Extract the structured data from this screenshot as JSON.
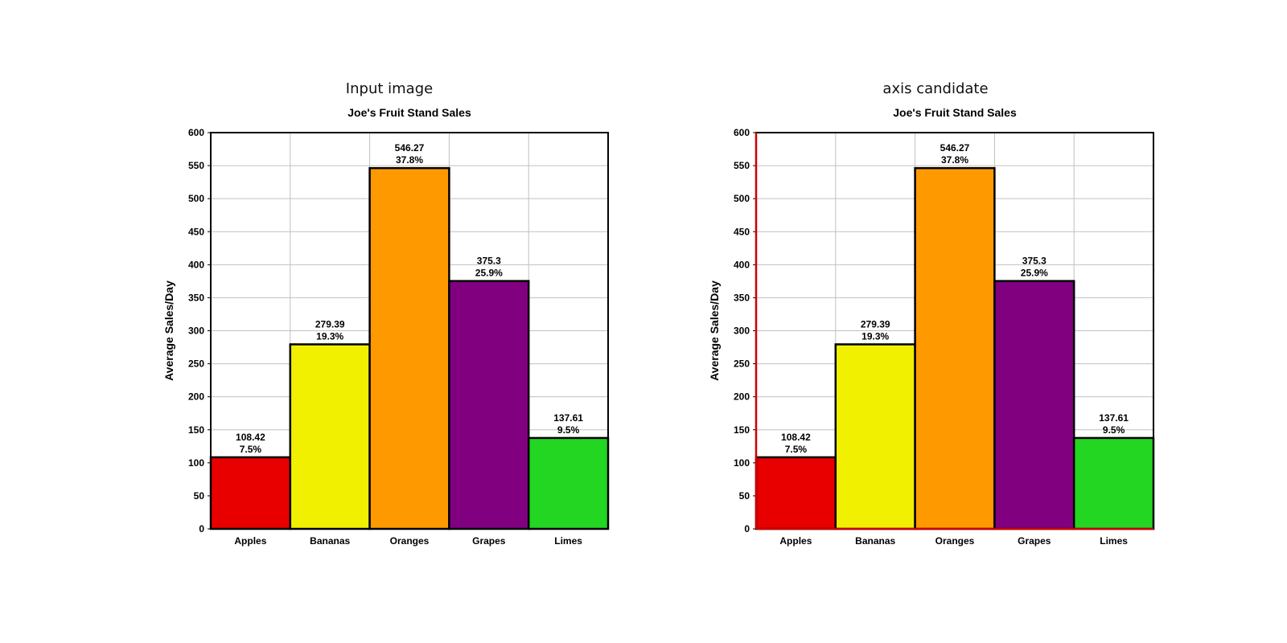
{
  "panels": [
    {
      "heading": "Input image"
    },
    {
      "heading": "axis candidate"
    }
  ],
  "chart_data": [
    {
      "type": "bar",
      "title": "Joe's Fruit Stand Sales",
      "xlabel": "",
      "ylabel": "Average Sales/Day",
      "ylim": [
        0,
        600
      ],
      "yticks": [
        0,
        50,
        100,
        150,
        200,
        250,
        300,
        350,
        400,
        450,
        500,
        550,
        600
      ],
      "grid": true,
      "categories": [
        "Apples",
        "Bananas",
        "Oranges",
        "Grapes",
        "Limes"
      ],
      "values": [
        108.42,
        279.39,
        546.27,
        375.3,
        137.61
      ],
      "value_labels": [
        "108.42",
        "279.39",
        "546.27",
        "375.3",
        "137.61"
      ],
      "percent_labels": [
        "7.5%",
        "19.3%",
        "37.8%",
        "25.9%",
        "9.5%"
      ],
      "colors": [
        "#e80000",
        "#f0f000",
        "#ff9900",
        "#800080",
        "#22d622"
      ],
      "axis_highlight": false
    },
    {
      "type": "bar",
      "title": "Joe's Fruit Stand Sales",
      "xlabel": "",
      "ylabel": "Average Sales/Day",
      "ylim": [
        0,
        600
      ],
      "yticks": [
        0,
        50,
        100,
        150,
        200,
        250,
        300,
        350,
        400,
        450,
        500,
        550,
        600
      ],
      "grid": true,
      "categories": [
        "Apples",
        "Bananas",
        "Oranges",
        "Grapes",
        "Limes"
      ],
      "values": [
        108.42,
        279.39,
        546.27,
        375.3,
        137.61
      ],
      "value_labels": [
        "108.42",
        "279.39",
        "546.27",
        "375.3",
        "137.61"
      ],
      "percent_labels": [
        "7.5%",
        "19.3%",
        "37.8%",
        "25.9%",
        "9.5%"
      ],
      "colors": [
        "#e80000",
        "#f0f000",
        "#ff9900",
        "#800080",
        "#22d622"
      ],
      "axis_highlight": true,
      "axis_highlight_color": "#cc0000"
    }
  ]
}
